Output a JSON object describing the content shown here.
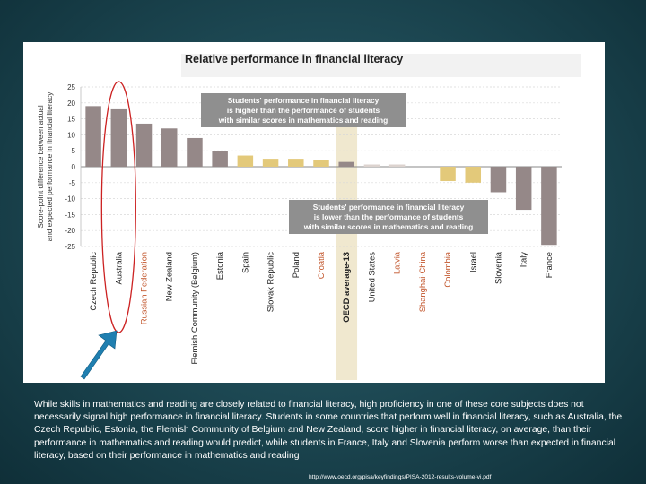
{
  "chart_data": {
    "type": "bar",
    "title": "Relative performance in financial literacy",
    "ylabel": "Score-point difference between actual and expected performance in financial literacy",
    "ylabel_lines": [
      "Score-point difference between actual",
      "and expected performance in financial literacy"
    ],
    "ylim": [
      -25,
      25
    ],
    "yticks": [
      25,
      20,
      15,
      10,
      5,
      0,
      -5,
      -10,
      -15,
      -20,
      -25
    ],
    "grid": true,
    "categories": [
      "Czech Republic",
      "Australia",
      "Russian Federation",
      "New Zealand",
      "Flemish Community (Belgium)",
      "Estonia",
      "Spain",
      "Slovak Republic",
      "Poland",
      "Croatia",
      "OECD average-13",
      "United States",
      "Latvia",
      "Shanghai-China",
      "Colombia",
      "Israel",
      "Slovenia",
      "Italy",
      "France"
    ],
    "values": [
      19,
      18,
      13.5,
      12,
      9,
      5,
      3.5,
      2.5,
      2.5,
      2,
      1.5,
      0.7,
      0.7,
      0,
      -4.5,
      -5,
      -8,
      -13.5,
      -24.5
    ],
    "bar_colors": [
      "#958888",
      "#958888",
      "#958888",
      "#958888",
      "#958888",
      "#958888",
      "#e3c97a",
      "#e3c97a",
      "#e3c97a",
      "#e3c97a",
      "#958888",
      "#dcd3cf",
      "#dcd3cf",
      "#dcd3cf",
      "#e3c97a",
      "#e3c97a",
      "#958888",
      "#958888",
      "#958888"
    ],
    "label_colors": [
      "#222222",
      "#222222",
      "#c2552b",
      "#222222",
      "#222222",
      "#222222",
      "#222222",
      "#222222",
      "#222222",
      "#c2552b",
      "#222222",
      "#222222",
      "#c2552b",
      "#c2552b",
      "#c2552b",
      "#222222",
      "#222222",
      "#222222",
      "#222222"
    ],
    "highlight_category": "OECD average-13",
    "annotations": [
      {
        "lines": [
          "Students' performance in financial literacy",
          "is higher than the performance of students",
          "with similar scores in mathematics and reading"
        ]
      },
      {
        "lines": [
          "Students' performance in financial literacy",
          "is lower than the performance of students",
          "with similar scores in mathematics and reading"
        ]
      }
    ]
  },
  "colors": {
    "bar_above_significant": "#958888",
    "bar_not_significant": "#e3c97a",
    "bar_faint": "#dcd3cf",
    "label_partner": "#c2552b",
    "annotation_box": "#8f8f8f",
    "oecd_band": "#f0e8cf",
    "circle_outline": "#cc2222",
    "arrow": "#1f7fb0"
  },
  "icons": {
    "arrow": "arrow-up-right-icon",
    "ellipse": "highlight-ellipse"
  },
  "caption": "While skills in mathematics and reading are closely related to financial literacy, high proficiency in one of these core subjects does not necessarily signal high performance in financial literacy. Students in some countries that perform well in financial literacy, such as Australia, the Czech Republic, Estonia, the Flemish Community of Belgium and New Zealand, score higher in financial literacy, on average, than their performance in mathematics and reading would predict, while students in France, Italy and Slovenia perform worse than expected in financial literacy, based on their performance in mathematics and reading",
  "source_url": "http://www.oecd.org/pisa/keyfindings/PISA-2012-results-volume-vi.pdf"
}
